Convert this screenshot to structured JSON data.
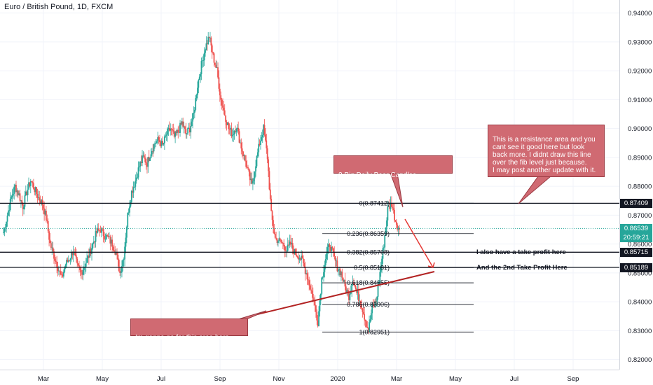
{
  "chart_title": "Euro / British Pound, 1D, FXCM",
  "chart_data": {
    "type": "line",
    "title": "Euro / British Pound, 1D, FXCM",
    "x_tick_labels": [
      "Mar",
      "May",
      "Jul",
      "Sep",
      "Nov",
      "2020",
      "Mar",
      "May",
      "Jul",
      "Sep"
    ],
    "y_tick_labels": [
      "0.94000",
      "0.93000",
      "0.92000",
      "0.91000",
      "0.90000",
      "0.89000",
      "0.88000",
      "0.87000",
      "0.86000",
      "0.85000",
      "0.84000",
      "0.83000",
      "0.82000"
    ],
    "ylim": [
      0.8165,
      0.9445
    ],
    "series": [
      {
        "values": [
          0.864,
          0.87,
          0.876,
          0.88,
          0.877,
          0.873,
          0.878,
          0.882,
          0.879,
          0.876,
          0.874,
          0.869,
          0.86,
          0.856,
          0.852,
          0.848,
          0.853,
          0.855,
          0.858,
          0.852,
          0.85,
          0.853,
          0.856,
          0.86,
          0.864,
          0.865,
          0.863,
          0.862,
          0.86,
          0.857,
          0.85,
          0.856,
          0.87,
          0.878,
          0.882,
          0.887,
          0.89,
          0.888,
          0.892,
          0.895,
          0.896,
          0.894,
          0.898,
          0.9,
          0.897,
          0.899,
          0.902,
          0.898,
          0.9,
          0.905,
          0.915,
          0.922,
          0.928,
          0.932,
          0.925,
          0.92,
          0.91,
          0.905,
          0.9,
          0.898,
          0.901,
          0.895,
          0.89,
          0.885,
          0.88,
          0.888,
          0.895,
          0.9,
          0.89,
          0.87,
          0.862,
          0.861,
          0.86,
          0.858,
          0.86,
          0.857,
          0.856,
          0.854,
          0.85,
          0.845,
          0.84,
          0.833,
          0.848,
          0.855,
          0.86,
          0.856,
          0.852,
          0.85,
          0.845,
          0.842,
          0.848,
          0.843,
          0.84,
          0.835,
          0.83,
          0.838,
          0.84,
          0.85,
          0.86,
          0.872,
          0.874,
          0.868,
          0.865
        ]
      }
    ],
    "horizontal_levels": [
      {
        "price": "0.87409",
        "color": "#131722"
      },
      {
        "price": "0.86539",
        "color": "#26a69a"
      },
      {
        "price": "0.85715",
        "color": "#131722"
      },
      {
        "price": "0.85189",
        "color": "#131722"
      }
    ],
    "fib_levels": [
      {
        "label": "0(0.87412)",
        "price": 0.87412
      },
      {
        "label": "0.236(0.86359)",
        "price": 0.86359
      },
      {
        "label": "0.382(0.85708)",
        "price": 0.85708
      },
      {
        "label": "0.5(0.85181)",
        "price": 0.85181
      },
      {
        "label": "0.618(0.84655)",
        "price": 0.84655
      },
      {
        "label": "0.786(0.83906)",
        "price": 0.83906
      },
      {
        "label": "1(0.82951)",
        "price": 0.82951
      }
    ],
    "countdown": "20:59:21",
    "colors": {
      "up": "#26a69a",
      "down": "#ef5350",
      "annotation": "#d06a72",
      "trendline": "#b22222"
    }
  },
  "annotations": {
    "bear_candles": "2 Big Daily Bear Candles",
    "resistance": "This is a resistance area and you cant see it good here but look back more. I didnt draw this line over the fib level just because.\nI may post another update with it.",
    "target_area": "Im gonna go for this area here",
    "take_profit_1": "I also have a take profit here",
    "take_profit_2": "And the 2nd Take Profit Here"
  }
}
